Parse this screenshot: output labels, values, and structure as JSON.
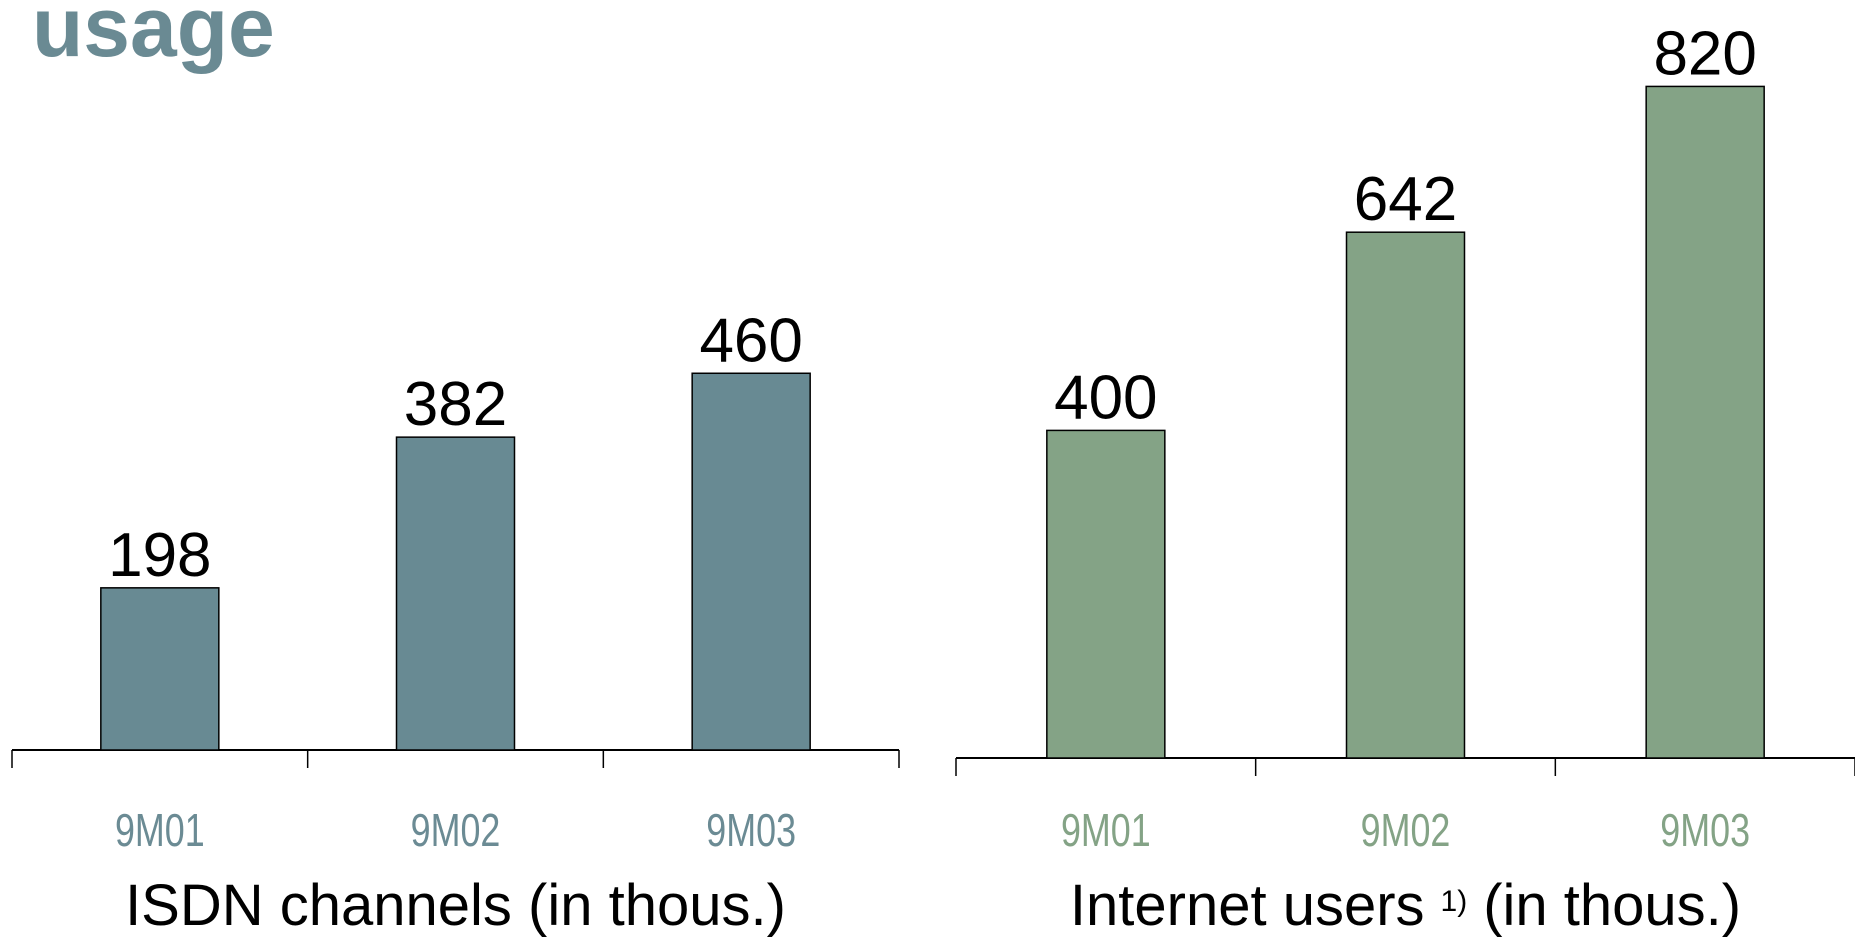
{
  "title": "usage",
  "chart_data": [
    {
      "type": "bar",
      "label": "ISDN channels (in thous.)",
      "categories": [
        "9M01",
        "9M02",
        "9M03"
      ],
      "values": [
        198,
        382,
        460
      ],
      "color": "#688a93",
      "category_color": "#6b8b94"
    },
    {
      "type": "bar",
      "label": "Internet users",
      "label_note": "1)",
      "label_unit": "(in thous.)",
      "categories": [
        "9M01",
        "9M02",
        "9M03"
      ],
      "values": [
        400,
        642,
        820
      ],
      "color": "#84a386",
      "category_color": "#84a386"
    }
  ]
}
